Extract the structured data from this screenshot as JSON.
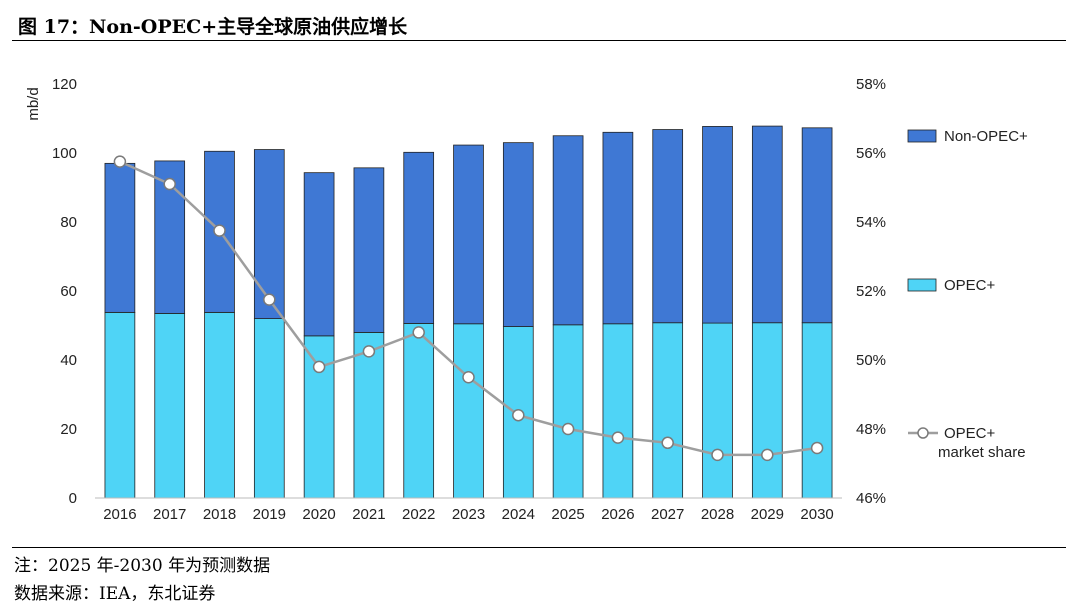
{
  "header": {
    "figure_title": "图 17：Non-OPEC+主导全球原油供应增长"
  },
  "notes": {
    "note": "注：2025 年-2030 年为预测数据",
    "source": "数据来源：IEA，东北证券"
  },
  "chart_data": {
    "type": "bar",
    "stacked": true,
    "categories": [
      "2016",
      "2017",
      "2018",
      "2019",
      "2020",
      "2021",
      "2022",
      "2023",
      "2024",
      "2025",
      "2026",
      "2027",
      "2028",
      "2029",
      "2030"
    ],
    "series": [
      {
        "name": "OPEC+",
        "type": "bar",
        "axis": "left",
        "color": "#4fd4f6",
        "values": [
          53.8,
          53.5,
          53.8,
          52.0,
          47.0,
          48.0,
          50.6,
          50.5,
          49.7,
          50.2,
          50.5,
          50.8,
          50.7,
          50.8,
          50.8
        ]
      },
      {
        "name": "Non-OPEC+",
        "type": "bar",
        "axis": "left",
        "color": "#3f78d4",
        "values": [
          43.2,
          44.2,
          46.7,
          49.0,
          47.3,
          47.7,
          49.6,
          51.8,
          53.3,
          54.8,
          55.5,
          56.0,
          57.0,
          57.0,
          56.5
        ]
      },
      {
        "name": "OPEC+\nmarket share",
        "type": "line",
        "axis": "right",
        "color": "#9e9e9e",
        "values": [
          55.75,
          55.1,
          53.75,
          51.75,
          49.8,
          50.25,
          50.8,
          49.5,
          48.4,
          48.0,
          47.75,
          47.6,
          47.25,
          47.25,
          47.45
        ]
      }
    ],
    "ylabel": "mb/d",
    "ylim": [
      0,
      120
    ],
    "yticks": [
      0,
      20,
      40,
      60,
      80,
      100,
      120
    ],
    "y2lim": [
      46,
      58
    ],
    "y2ticks": [
      46,
      48,
      50,
      52,
      54,
      56,
      58
    ],
    "y2_tick_labels": [
      "46%",
      "48%",
      "50%",
      "52%",
      "54%",
      "56%",
      "58%"
    ],
    "grid": false,
    "legend_position": "right"
  }
}
